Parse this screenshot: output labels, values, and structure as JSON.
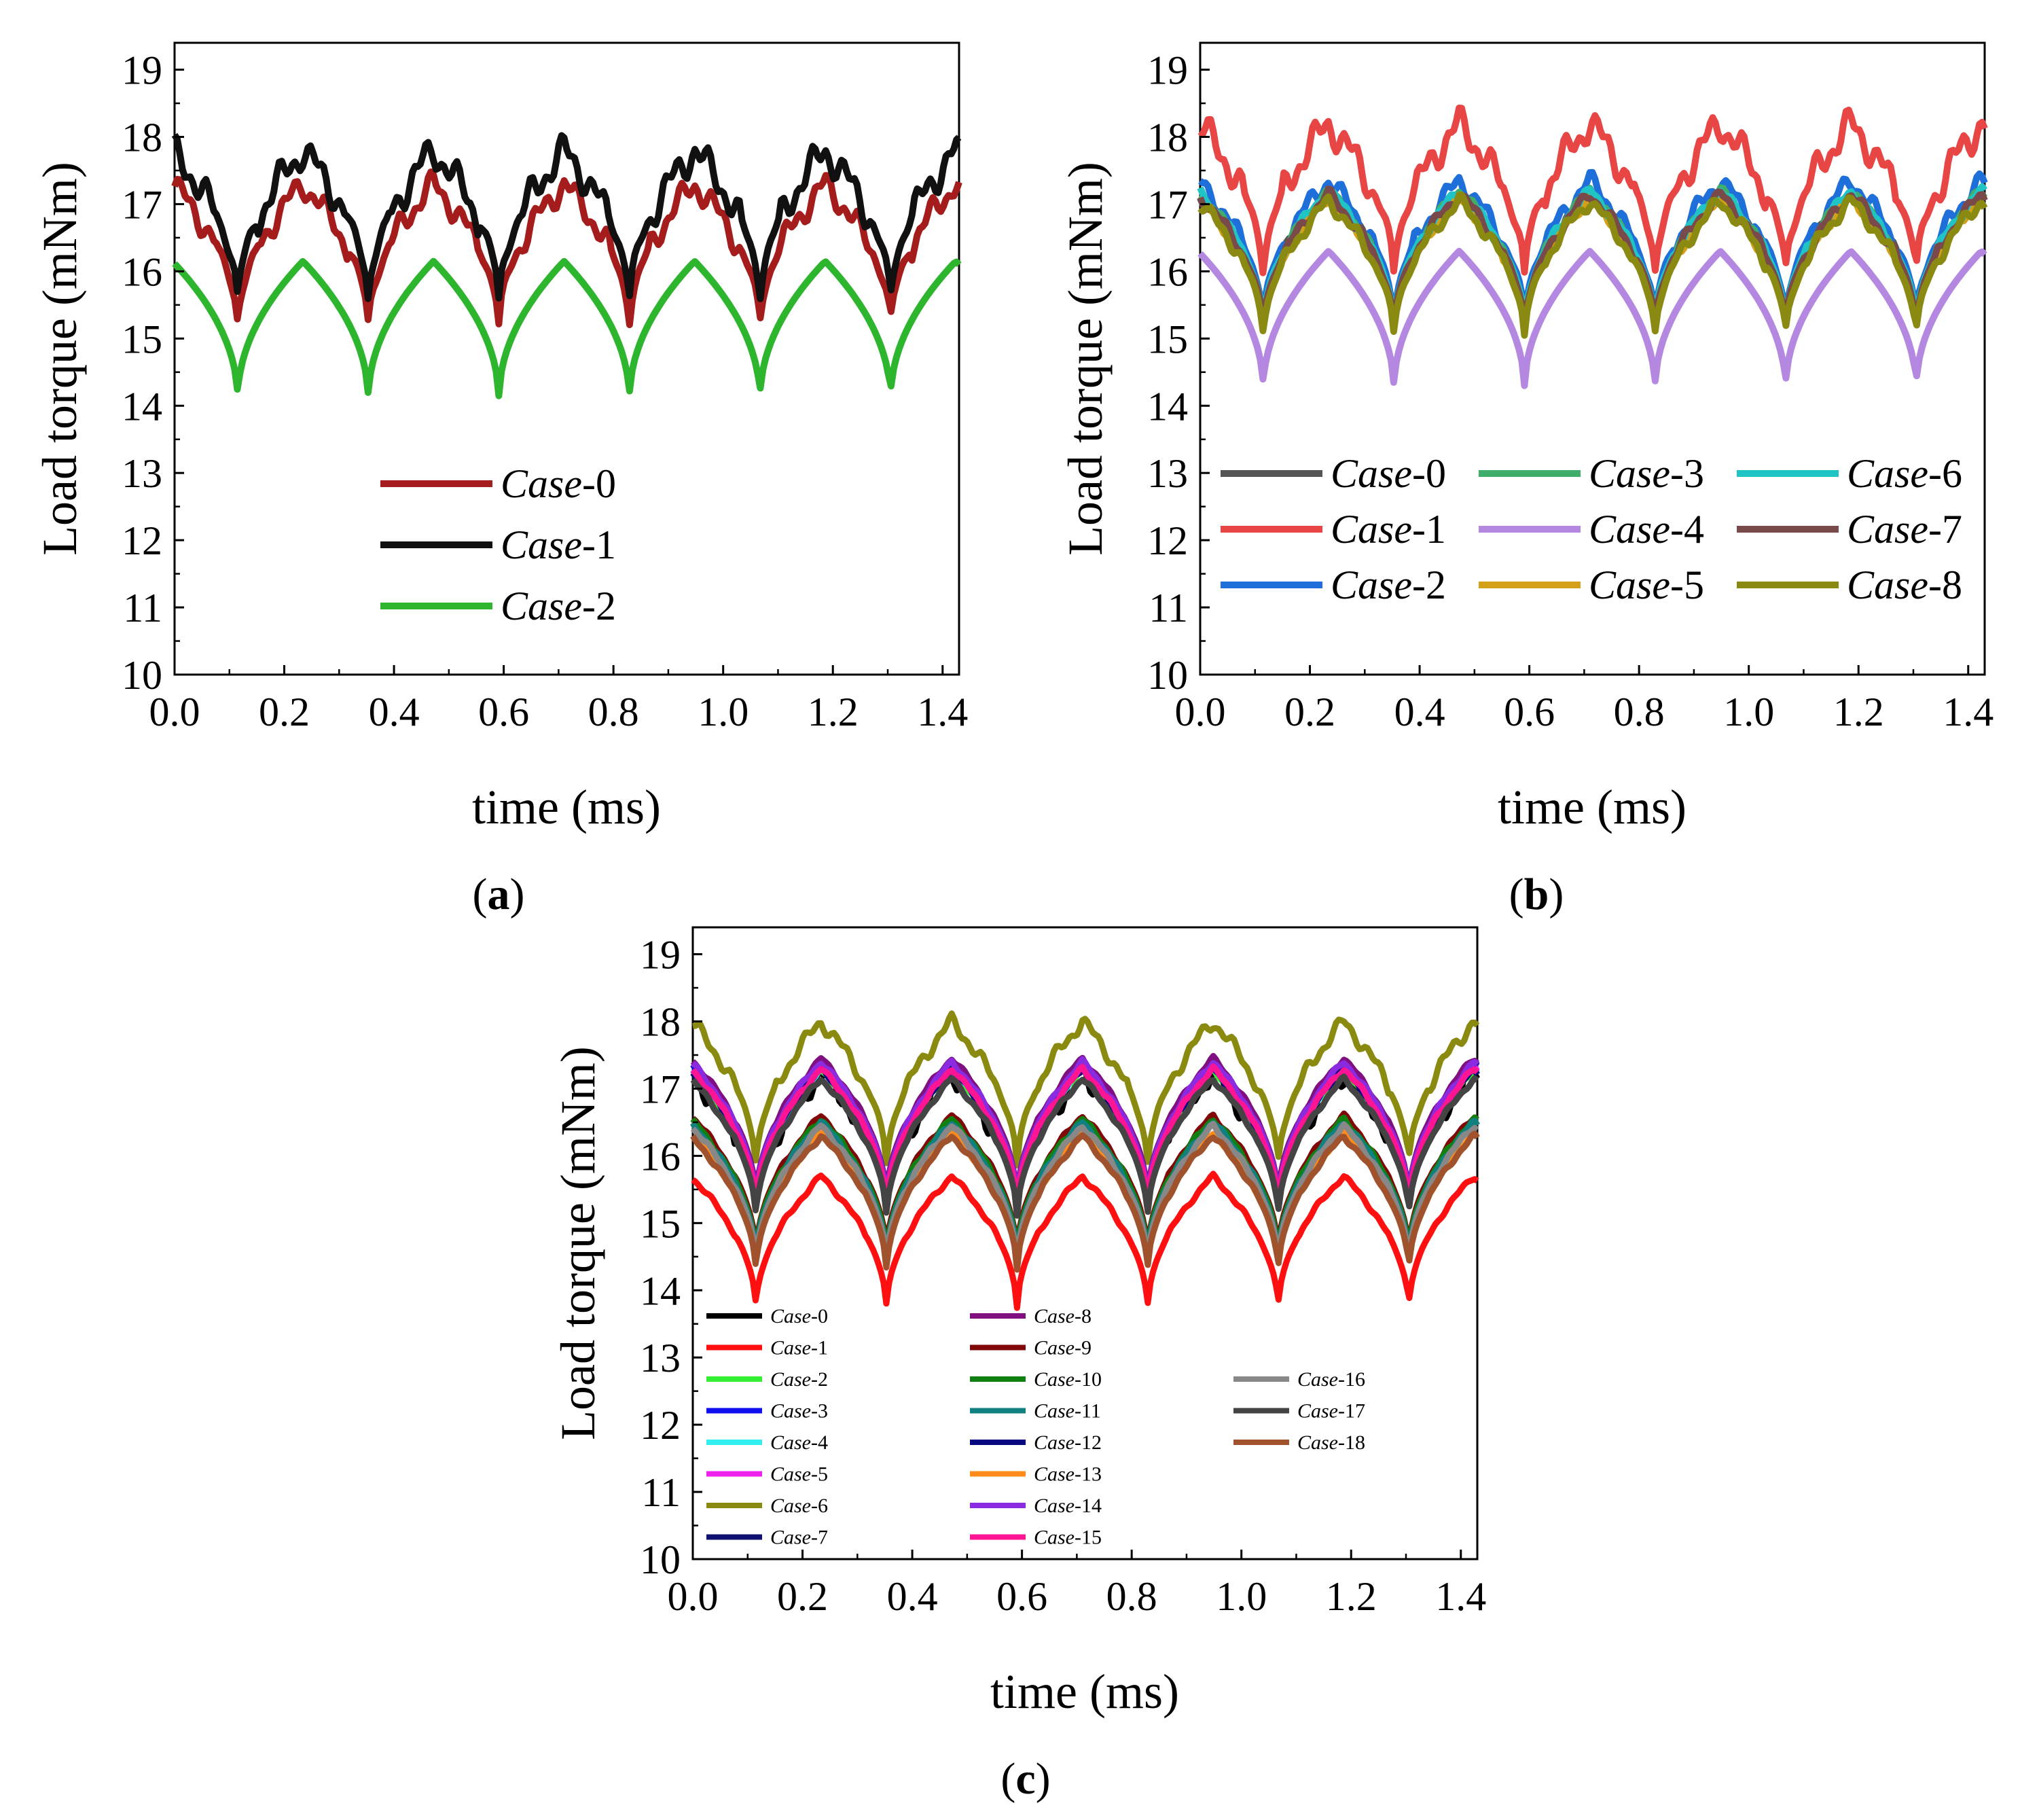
{
  "chart_data": [
    {
      "type": "line",
      "panel_label": "a",
      "xlabel": "time (ms)",
      "ylabel": "Load torque (mNm)",
      "xlim": [
        0,
        1.43
      ],
      "ylim": [
        10,
        19.4
      ],
      "xticks": [
        0.0,
        0.2,
        0.4,
        0.6,
        0.8,
        1.0,
        1.2,
        1.4
      ],
      "xtick_labels": [
        "0.0",
        "0.2",
        "0.4",
        "0.6",
        "0.8",
        "1.0",
        "1.2",
        "1.4"
      ],
      "yticks": [
        10,
        11,
        12,
        13,
        14,
        15,
        16,
        17,
        18,
        19
      ],
      "ytick_labels": [
        "10",
        "11",
        "12",
        "13",
        "14",
        "15",
        "16",
        "17",
        "18",
        "19"
      ],
      "legend_position": "middle-center",
      "series": [
        {
          "name": "Case",
          "suffix": "-0",
          "color": "#a51c1c",
          "base": 17.3,
          "dip": 15.15,
          "noise": 0.28
        },
        {
          "name": "Case",
          "suffix": "-1",
          "color": "#111111",
          "base": 17.8,
          "dip": 15.5,
          "noise": 0.35
        },
        {
          "name": "Case",
          "suffix": "-2",
          "color": "#2db52d",
          "base": 16.15,
          "dip": 14.1,
          "noise": 0.0
        }
      ]
    },
    {
      "type": "line",
      "panel_label": "b",
      "xlabel": "time (ms)",
      "ylabel": "Load torque (mNm)",
      "xlim": [
        0,
        1.43
      ],
      "ylim": [
        10,
        19.4
      ],
      "xticks": [
        0.0,
        0.2,
        0.4,
        0.6,
        0.8,
        1.0,
        1.2,
        1.4
      ],
      "xtick_labels": [
        "0.0",
        "0.2",
        "0.4",
        "0.6",
        "0.8",
        "1.0",
        "1.2",
        "1.4"
      ],
      "yticks": [
        10,
        11,
        12,
        13,
        14,
        15,
        16,
        17,
        18,
        19
      ],
      "ytick_labels": [
        "10",
        "11",
        "12",
        "13",
        "14",
        "15",
        "16",
        "17",
        "18",
        "19"
      ],
      "legend_position": "lower",
      "series": [
        {
          "name": "Case",
          "suffix": "-0",
          "color": "#555555",
          "base": 17.15,
          "dip": 15.2,
          "noise": 0.1
        },
        {
          "name": "Case",
          "suffix": "-1",
          "color": "#e84545",
          "base": 18.2,
          "dip": 15.9,
          "noise": 0.35
        },
        {
          "name": "Case",
          "suffix": "-2",
          "color": "#1e6fd9",
          "base": 17.35,
          "dip": 15.2,
          "noise": 0.2
        },
        {
          "name": "Case",
          "suffix": "-3",
          "color": "#3fae6a",
          "base": 17.2,
          "dip": 15.1,
          "noise": 0.1
        },
        {
          "name": "Case",
          "suffix": "-4",
          "color": "#b488e0",
          "base": 16.3,
          "dip": 14.25,
          "noise": 0.0
        },
        {
          "name": "Case",
          "suffix": "-5",
          "color": "#d4a017",
          "base": 17.1,
          "dip": 15.05,
          "noise": 0.1
        },
        {
          "name": "Case",
          "suffix": "-6",
          "color": "#20c4c4",
          "base": 17.2,
          "dip": 15.15,
          "noise": 0.1
        },
        {
          "name": "Case",
          "suffix": "-7",
          "color": "#7a4a4a",
          "base": 17.15,
          "dip": 15.1,
          "noise": 0.12
        },
        {
          "name": "Case",
          "suffix": "-8",
          "color": "#8a8a12",
          "base": 17.05,
          "dip": 15.0,
          "noise": 0.15
        }
      ]
    },
    {
      "type": "line",
      "panel_label": "c",
      "xlabel": "time (ms)",
      "ylabel": "Load torque (mNm)",
      "xlim": [
        0,
        1.43
      ],
      "ylim": [
        10,
        19.4
      ],
      "xticks": [
        0.0,
        0.2,
        0.4,
        0.6,
        0.8,
        1.0,
        1.2,
        1.4
      ],
      "xtick_labels": [
        "0.0",
        "0.2",
        "0.4",
        "0.6",
        "0.8",
        "1.0",
        "1.2",
        "1.4"
      ],
      "yticks": [
        10,
        11,
        12,
        13,
        14,
        15,
        16,
        17,
        18,
        19
      ],
      "ytick_labels": [
        "10",
        "11",
        "12",
        "13",
        "14",
        "15",
        "16",
        "17",
        "18",
        "19"
      ],
      "legend_position": "lower-left",
      "series": [
        {
          "name": "Case",
          "suffix": "-0",
          "color": "#000000",
          "base": 17.25,
          "dip": 15.1,
          "noise": 0.25
        },
        {
          "name": "Case",
          "suffix": "-1",
          "color": "#ff1010",
          "base": 15.7,
          "dip": 13.7,
          "noise": 0.05
        },
        {
          "name": "Case",
          "suffix": "-2",
          "color": "#33ee33",
          "base": 17.3,
          "dip": 15.2,
          "noise": 0.05
        },
        {
          "name": "Case",
          "suffix": "-3",
          "color": "#1010ee",
          "base": 17.35,
          "dip": 15.2,
          "noise": 0.05
        },
        {
          "name": "Case",
          "suffix": "-4",
          "color": "#33eeee",
          "base": 17.3,
          "dip": 15.15,
          "noise": 0.05
        },
        {
          "name": "Case",
          "suffix": "-5",
          "color": "#ee22ee",
          "base": 17.35,
          "dip": 15.2,
          "noise": 0.05
        },
        {
          "name": "Case",
          "suffix": "-6",
          "color": "#8a8a10",
          "base": 18.0,
          "dip": 15.8,
          "noise": 0.15
        },
        {
          "name": "Case",
          "suffix": "-7",
          "color": "#101070",
          "base": 17.4,
          "dip": 15.25,
          "noise": 0.05
        },
        {
          "name": "Case",
          "suffix": "-8",
          "color": "#801080",
          "base": 17.45,
          "dip": 15.3,
          "noise": 0.05
        },
        {
          "name": "Case",
          "suffix": "-9",
          "color": "#800808",
          "base": 16.6,
          "dip": 14.5,
          "noise": 0.05
        },
        {
          "name": "Case",
          "suffix": "-10",
          "color": "#108010",
          "base": 16.55,
          "dip": 14.45,
          "noise": 0.05
        },
        {
          "name": "Case",
          "suffix": "-11",
          "color": "#108080",
          "base": 16.5,
          "dip": 14.4,
          "noise": 0.05
        },
        {
          "name": "Case",
          "suffix": "-12",
          "color": "#080880",
          "base": 17.3,
          "dip": 15.15,
          "noise": 0.05
        },
        {
          "name": "Case",
          "suffix": "-13",
          "color": "#ff8c1a",
          "base": 16.35,
          "dip": 14.3,
          "noise": 0.05
        },
        {
          "name": "Case",
          "suffix": "-14",
          "color": "#8a2be2",
          "base": 17.4,
          "dip": 15.25,
          "noise": 0.05
        },
        {
          "name": "Case",
          "suffix": "-15",
          "color": "#ff1493",
          "base": 17.3,
          "dip": 15.2,
          "noise": 0.05
        },
        {
          "name": "Case",
          "suffix": "-16",
          "color": "#888888",
          "base": 16.45,
          "dip": 14.35,
          "noise": 0.05
        },
        {
          "name": "Case",
          "suffix": "-17",
          "color": "#444444",
          "base": 17.15,
          "dip": 15.05,
          "noise": 0.05
        },
        {
          "name": "Case",
          "suffix": "-18",
          "color": "#a0522d",
          "base": 16.3,
          "dip": 14.25,
          "noise": 0.05
        }
      ]
    }
  ],
  "waveform": {
    "period_ms": 0.238,
    "first_dip_ms": 0.115
  }
}
